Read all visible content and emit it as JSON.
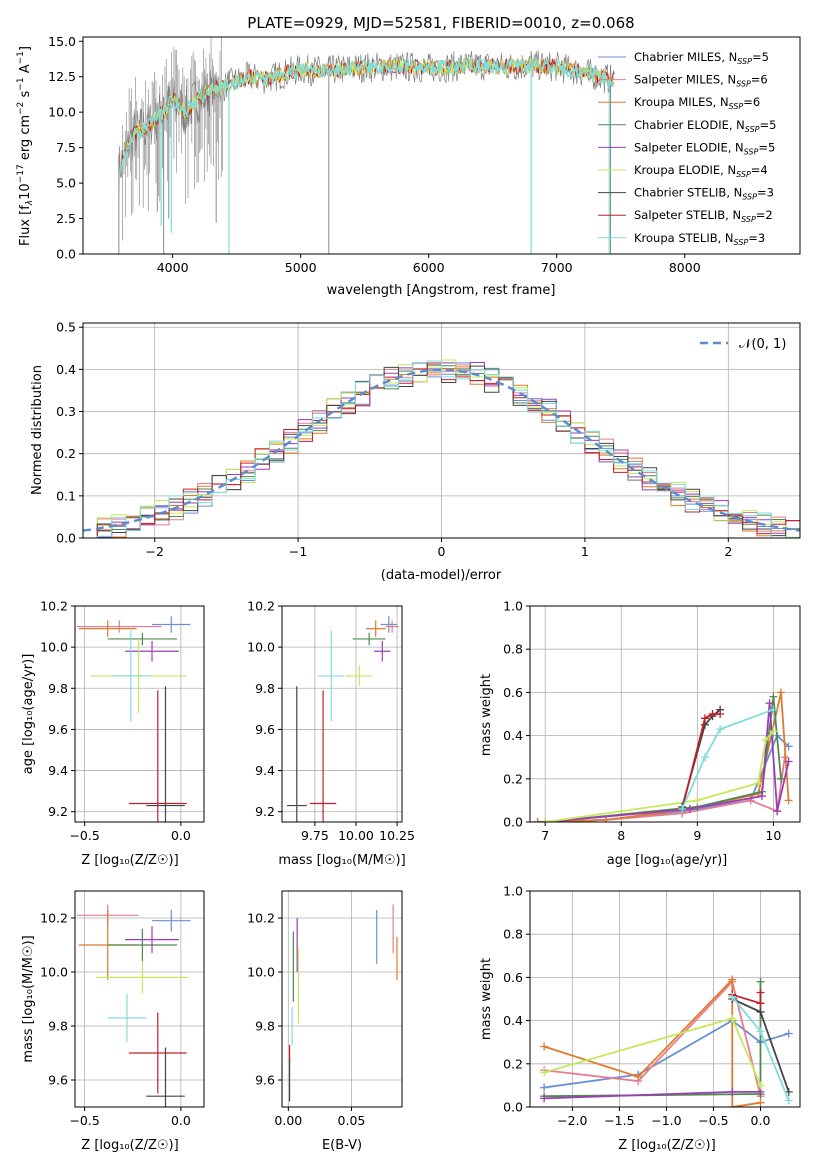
{
  "colors": {
    "chabrier_miles": "#6a8fd6",
    "salpeter_miles": "#e87b8e",
    "kroupa_miles": "#e07b2a",
    "chabrier_elodie": "#4e8a4e",
    "salpeter_elodie": "#9a3fb5",
    "kroupa_elodie": "#c6e85a",
    "chabrier_stelib": "#444444",
    "salpeter_stelib": "#c0202a",
    "kroupa_stelib": "#7fdedb",
    "normal_curve": "#5b8bd0",
    "spectrum_data": "#7f7f7f"
  },
  "chart_data": [
    {
      "type": "line",
      "title": "PLATE=0929, MJD=52581, FIBERID=0010, z=0.068",
      "xlabel": "wavelength [Angstrom, rest frame]",
      "ylabel_parts": [
        "Flux [f",
        "λ",
        "10",
        "−17",
        " erg cm",
        "−2",
        " s",
        "−1",
        " A",
        "−1",
        "]"
      ],
      "xlim": [
        3300,
        8900
      ],
      "ylim": [
        0.0,
        15.3
      ],
      "xticks": [
        "4000",
        "5000",
        "6000",
        "7000",
        "8000"
      ],
      "yticks": [
        "0.0",
        "2.5",
        "5.0",
        "7.5",
        "10.0",
        "12.5",
        "15.0"
      ],
      "legend_position": "upper right",
      "series": [
        {
          "name": "Chabrier MILES, N",
          "sub": "SSP",
          "suffix": "=5",
          "key": "chabrier_miles"
        },
        {
          "name": "Salpeter MILES, N",
          "sub": "SSP",
          "suffix": "=6",
          "key": "salpeter_miles"
        },
        {
          "name": "Kroupa MILES, N",
          "sub": "SSP",
          "suffix": "=6",
          "key": "kroupa_miles"
        },
        {
          "name": "Chabrier ELODIE, N",
          "sub": "SSP",
          "suffix": "=5",
          "key": "chabrier_elodie"
        },
        {
          "name": "Salpeter ELODIE, N",
          "sub": "SSP",
          "suffix": "=5",
          "key": "salpeter_elodie"
        },
        {
          "name": "Kroupa ELODIE, N",
          "sub": "SSP",
          "suffix": "=4",
          "key": "kroupa_elodie"
        },
        {
          "name": "Chabrier STELIB, N",
          "sub": "SSP",
          "suffix": "=3",
          "key": "chabrier_stelib"
        },
        {
          "name": "Salpeter STELIB, N",
          "sub": "SSP",
          "suffix": "=2",
          "key": "salpeter_stelib"
        },
        {
          "name": "Kroupa STELIB, N",
          "sub": "SSP",
          "suffix": "=3",
          "key": "kroupa_stelib"
        }
      ],
      "continuum": {
        "x": [
          3580,
          3650,
          3700,
          3800,
          3900,
          4000,
          4100,
          4200,
          4300,
          4400,
          4500,
          4600,
          4700,
          4800,
          4900,
          5000,
          5200,
          5400,
          5600,
          5800,
          6000,
          6200,
          6400,
          6600,
          6800,
          7000,
          7200,
          7350,
          7450
        ],
        "y": [
          6.0,
          7.5,
          8.5,
          9.0,
          9.8,
          10.8,
          10.0,
          11.0,
          11.5,
          11.8,
          12.2,
          12.5,
          12.3,
          12.5,
          12.8,
          13.0,
          12.9,
          13.1,
          13.2,
          13.2,
          13.1,
          13.2,
          13.3,
          13.2,
          13.3,
          13.2,
          12.8,
          12.5,
          12.2
        ]
      }
    },
    {
      "type": "line",
      "xlabel": "(data-model)/error",
      "ylabel": "Normed distribution",
      "xlim": [
        -2.5,
        2.5
      ],
      "ylim": [
        0.0,
        0.51
      ],
      "xticks": [
        "−2",
        "−1",
        "0",
        "1",
        "2"
      ],
      "yticks": [
        "0.0",
        "0.1",
        "0.2",
        "0.3",
        "0.4",
        "0.5"
      ],
      "legend": "𝒩(0, 1)",
      "legend_position": "upper right",
      "curve": {
        "mean": 0,
        "sigma": 1
      },
      "histogram_bins": {
        "start": -2.5,
        "width": 0.1
      }
    },
    {
      "type": "scatter",
      "xlabel": "Z [log₁₀(Z/Z☉)]",
      "ylabel": "age  [log₁₀(age/yr)]",
      "xlim": [
        -0.55,
        0.12
      ],
      "ylim": [
        9.15,
        10.2
      ],
      "xticks": [
        "−0.5",
        "0.0"
      ],
      "yticks": [
        "9.2",
        "9.4",
        "9.6",
        "9.8",
        "10.0",
        "10.2"
      ],
      "points": [
        {
          "key": "chabrier_miles",
          "x": -0.05,
          "y": 10.11,
          "xerr": 0.1,
          "yerr": 0.04
        },
        {
          "key": "salpeter_miles",
          "x": -0.32,
          "y": 10.1,
          "xerr": 0.22,
          "yerr": 0.03
        },
        {
          "key": "kroupa_miles",
          "x": -0.38,
          "y": 10.09,
          "xerr": 0.15,
          "yerr": 0.04
        },
        {
          "key": "chabrier_elodie",
          "x": -0.2,
          "y": 10.04,
          "xerr": 0.18,
          "yerr": 0.03
        },
        {
          "key": "salpeter_elodie",
          "x": -0.15,
          "y": 9.98,
          "xerr": 0.14,
          "yerr": 0.05
        },
        {
          "key": "kroupa_elodie",
          "x": -0.22,
          "y": 9.86,
          "xerr": 0.25,
          "yerr": 0.18
        },
        {
          "key": "kroupa_stelib",
          "x": -0.26,
          "y": 9.86,
          "xerr": 0.1,
          "yerr": 0.22
        },
        {
          "key": "chabrier_stelib",
          "x": -0.08,
          "y": 9.23,
          "xerr": 0.1,
          "yerr": 0.58
        },
        {
          "key": "salpeter_stelib",
          "x": -0.12,
          "y": 9.24,
          "xerr": 0.15,
          "yerr": 0.55
        }
      ]
    },
    {
      "type": "scatter",
      "xlabel": "mass [log₁₀(M/M☉)]",
      "ylabel": "",
      "xlim": [
        9.55,
        10.28
      ],
      "ylim": [
        9.15,
        10.2
      ],
      "xticks": [
        "9.75",
        "10.00",
        "10.25"
      ],
      "yticks": [
        "9.2",
        "9.4",
        "9.6",
        "9.8",
        "10.0",
        "10.2"
      ],
      "points": [
        {
          "key": "chabrier_miles",
          "x": 10.2,
          "y": 10.11,
          "xerr": 0.05,
          "yerr": 0.04
        },
        {
          "key": "salpeter_miles",
          "x": 10.22,
          "y": 10.1,
          "xerr": 0.04,
          "yerr": 0.03
        },
        {
          "key": "kroupa_miles",
          "x": 10.12,
          "y": 10.09,
          "xerr": 0.06,
          "yerr": 0.04
        },
        {
          "key": "chabrier_elodie",
          "x": 10.08,
          "y": 10.04,
          "xerr": 0.1,
          "yerr": 0.03
        },
        {
          "key": "salpeter_elodie",
          "x": 10.16,
          "y": 9.98,
          "xerr": 0.05,
          "yerr": 0.05
        },
        {
          "key": "kroupa_elodie",
          "x": 10.02,
          "y": 9.86,
          "xerr": 0.08,
          "yerr": 0.05
        },
        {
          "key": "kroupa_stelib",
          "x": 9.85,
          "y": 9.86,
          "xerr": 0.08,
          "yerr": 0.22
        },
        {
          "key": "chabrier_stelib",
          "x": 9.64,
          "y": 9.23,
          "xerr": 0.06,
          "yerr": 0.58
        },
        {
          "key": "salpeter_stelib",
          "x": 9.8,
          "y": 9.24,
          "xerr": 0.08,
          "yerr": 0.55
        }
      ]
    },
    {
      "type": "line",
      "xlabel": "age  [log₁₀(age/yr)]",
      "ylabel": "mass weight",
      "xlim": [
        6.8,
        10.35
      ],
      "ylim": [
        0.0,
        1.0
      ],
      "xticks": [
        "7",
        "8",
        "9",
        "10"
      ],
      "yticks": [
        "0.0",
        "0.2",
        "0.4",
        "0.6",
        "0.8",
        "1.0"
      ],
      "series": [
        {
          "key": "chabrier_miles",
          "x": [
            6.9,
            7.8,
            8.8,
            9.7,
            10.05,
            10.2
          ],
          "y": [
            0.0,
            0.01,
            0.05,
            0.1,
            0.4,
            0.35
          ]
        },
        {
          "key": "salpeter_miles",
          "x": [
            6.9,
            7.8,
            8.8,
            9.7,
            10.05,
            10.15
          ],
          "y": [
            0.0,
            0.01,
            0.04,
            0.1,
            0.05,
            0.3
          ]
        },
        {
          "key": "kroupa_miles",
          "x": [
            6.9,
            7.8,
            8.9,
            9.8,
            10.1,
            10.2
          ],
          "y": [
            0.0,
            0.01,
            0.06,
            0.13,
            0.6,
            0.1
          ]
        },
        {
          "key": "chabrier_elodie",
          "x": [
            7.0,
            9.0,
            9.85,
            10.0,
            10.1
          ],
          "y": [
            0.0,
            0.07,
            0.14,
            0.58,
            0.2
          ]
        },
        {
          "key": "salpeter_elodie",
          "x": [
            7.0,
            8.9,
            9.85,
            9.95,
            10.05,
            10.2
          ],
          "y": [
            0.0,
            0.06,
            0.12,
            0.55,
            0.05,
            0.28
          ]
        },
        {
          "key": "kroupa_elodie",
          "x": [
            7.0,
            9.0,
            9.8,
            9.9,
            10.0
          ],
          "y": [
            0.0,
            0.1,
            0.18,
            0.38,
            0.42
          ]
        },
        {
          "key": "chabrier_stelib",
          "x": [
            8.8,
            9.1,
            9.2,
            9.3
          ],
          "y": [
            0.07,
            0.45,
            0.49,
            0.52
          ]
        },
        {
          "key": "salpeter_stelib",
          "x": [
            8.8,
            9.1,
            9.2,
            9.3
          ],
          "y": [
            0.06,
            0.48,
            0.5,
            0.5
          ]
        },
        {
          "key": "kroupa_stelib",
          "x": [
            8.8,
            9.1,
            9.3,
            10.0
          ],
          "y": [
            0.06,
            0.3,
            0.43,
            0.52
          ]
        }
      ]
    },
    {
      "type": "scatter",
      "xlabel": "Z [log₁₀(Z/Z☉)]",
      "ylabel": "mass [log₁₀(M/M☉)]",
      "xlim": [
        -0.55,
        0.12
      ],
      "ylim": [
        9.5,
        10.3
      ],
      "xticks": [
        "−0.5",
        "0.0"
      ],
      "yticks": [
        "9.6",
        "9.8",
        "10.0",
        "10.2"
      ],
      "points": [
        {
          "key": "chabrier_miles",
          "x": -0.05,
          "y": 10.19,
          "xerr": 0.1,
          "yerr": 0.04
        },
        {
          "key": "salpeter_miles",
          "x": -0.38,
          "y": 10.21,
          "xerr": 0.16,
          "yerr": 0.04
        },
        {
          "key": "kroupa_miles",
          "x": -0.38,
          "y": 10.1,
          "xerr": 0.15,
          "yerr": 0.13
        },
        {
          "key": "chabrier_elodie",
          "x": -0.2,
          "y": 10.1,
          "xerr": 0.18,
          "yerr": 0.06
        },
        {
          "key": "salpeter_elodie",
          "x": -0.15,
          "y": 10.12,
          "xerr": 0.14,
          "yerr": 0.05
        },
        {
          "key": "kroupa_elodie",
          "x": -0.2,
          "y": 9.98,
          "xerr": 0.24,
          "yerr": 0.06
        },
        {
          "key": "kroupa_stelib",
          "x": -0.28,
          "y": 9.83,
          "xerr": 0.1,
          "yerr": 0.09
        },
        {
          "key": "chabrier_stelib",
          "x": -0.08,
          "y": 9.54,
          "xerr": 0.1,
          "yerr": 0.18
        },
        {
          "key": "salpeter_stelib",
          "x": -0.12,
          "y": 9.7,
          "xerr": 0.15,
          "yerr": 0.15
        }
      ]
    },
    {
      "type": "scatter",
      "xlabel": "E(B-V)",
      "ylabel": "",
      "xlim": [
        -0.005,
        0.09
      ],
      "ylim": [
        9.5,
        10.3
      ],
      "xticks": [
        "0.00",
        "0.05"
      ],
      "yticks": [
        "9.6",
        "9.8",
        "10.0",
        "10.2"
      ],
      "points": [
        {
          "key": "chabrier_miles",
          "x": 0.07,
          "y": 10.13,
          "xerr": 0.0,
          "yerr": 0.1
        },
        {
          "key": "salpeter_miles",
          "x": 0.083,
          "y": 10.16,
          "xerr": 0.0,
          "yerr": 0.09
        },
        {
          "key": "kroupa_miles",
          "x": 0.086,
          "y": 10.05,
          "xerr": 0.0,
          "yerr": 0.08
        },
        {
          "key": "chabrier_elodie",
          "x": 0.004,
          "y": 10.02,
          "xerr": 0.0,
          "yerr": 0.13
        },
        {
          "key": "salpeter_elodie",
          "x": 0.007,
          "y": 10.1,
          "xerr": 0.0,
          "yerr": 0.1
        },
        {
          "key": "kroupa_elodie",
          "x": 0.008,
          "y": 9.95,
          "xerr": 0.0,
          "yerr": 0.14
        },
        {
          "key": "kroupa_stelib",
          "x": 0.003,
          "y": 9.8,
          "xerr": 0.0,
          "yerr": 0.07
        },
        {
          "key": "chabrier_stelib",
          "x": 0.001,
          "y": 9.6,
          "xerr": 0.0,
          "yerr": 0.08
        },
        {
          "key": "salpeter_stelib",
          "x": 0.001,
          "y": 9.7,
          "xerr": 0.0,
          "yerr": 0.03
        }
      ]
    },
    {
      "type": "line",
      "xlabel": "Z [log₁₀(Z/Z☉)]",
      "ylabel": "mass weight",
      "xlim": [
        -2.45,
        0.42
      ],
      "ylim": [
        0.0,
        1.0
      ],
      "xticks": [
        "−2.0",
        "−1.5",
        "−1.0",
        "−0.5",
        "0.0"
      ],
      "yticks": [
        "0.0",
        "0.2",
        "0.4",
        "0.6",
        "0.8",
        "1.0"
      ],
      "series": [
        {
          "key": "chabrier_miles",
          "x": [
            -2.3,
            -1.3,
            -0.3,
            0.0,
            0.3
          ],
          "y": [
            0.09,
            0.15,
            0.4,
            0.3,
            0.34
          ]
        },
        {
          "key": "salpeter_miles",
          "x": [
            -2.3,
            -1.3,
            -0.3,
            0.0
          ],
          "y": [
            0.17,
            0.12,
            0.58,
            0.05
          ]
        },
        {
          "key": "kroupa_miles",
          "x": [
            -2.3,
            -1.3,
            -0.3,
            -0.3,
            0.0
          ],
          "y": [
            0.28,
            0.14,
            0.59,
            0.0,
            0.02
          ]
        },
        {
          "key": "chabrier_elodie",
          "x": [
            -2.3,
            0.0,
            0.0
          ],
          "y": [
            0.05,
            0.06,
            0.58
          ]
        },
        {
          "key": "salpeter_elodie",
          "x": [
            -2.3,
            -0.3,
            0.0
          ],
          "y": [
            0.04,
            0.07,
            0.07
          ]
        },
        {
          "key": "kroupa_elodie",
          "x": [
            -2.3,
            -0.3,
            0.0
          ],
          "y": [
            0.16,
            0.41,
            0.1
          ]
        },
        {
          "key": "chabrier_stelib",
          "x": [
            -0.3,
            0.0,
            0.3
          ],
          "y": [
            0.5,
            0.44,
            0.07
          ]
        },
        {
          "key": "salpeter_stelib",
          "x": [
            -0.3,
            0.0,
            0.0
          ],
          "y": [
            0.52,
            0.48,
            0.53
          ]
        },
        {
          "key": "kroupa_stelib",
          "x": [
            -0.3,
            0.0,
            0.3
          ],
          "y": [
            0.51,
            0.35,
            0.03
          ]
        }
      ]
    }
  ]
}
